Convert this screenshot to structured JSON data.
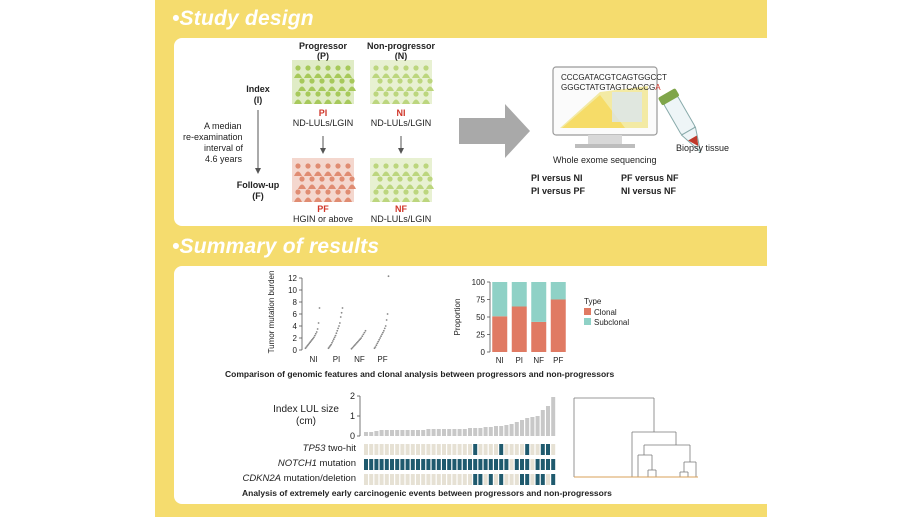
{
  "study_design": {
    "title": "•Study design",
    "col_progressor": "Progressor",
    "col_progressor_abbr": "(P)",
    "col_nonprogressor": "Non-progressor",
    "col_nonprogressor_abbr": "(N)",
    "index_label": "Index",
    "index_abbr": "(I)",
    "followup_label": "Follow-up",
    "followup_abbr": "(F)",
    "interval_text": [
      "A median",
      "re-examination",
      "interval of",
      "4.6 years"
    ],
    "pi_code": "PI",
    "pi_desc": "ND-LULs/LGIN",
    "ni_code": "NI",
    "ni_desc": "ND-LULs/LGIN",
    "pf_code": "PF",
    "pf_desc": "HGIN or above",
    "nf_code": "NF",
    "nf_desc": "ND-LULs/LGIN",
    "seq_line1": "CCCGATACGTCAGTGGCCT",
    "seq_line2": "GGGCTATGTAGTCACCG",
    "seq_line2_end": "A",
    "wes_label": "Whole exome sequencing",
    "biopsy_label": "Biopsy tissue",
    "comparisons": [
      "PI versus NI",
      "PF versus NF",
      "PI versus PF",
      "NI versus NF"
    ]
  },
  "summary": {
    "title": "•Summary of results",
    "caption1": "Comparison of genomic features and clonal analysis between progressors and non-progressors",
    "caption2": "Analysis of extremely early carcinogenic events between progressors and non-progressors",
    "lul_label_1": "Index LUL size",
    "lul_label_2": "(cm)",
    "row_tp53_gene": "TP53",
    "row_tp53_rest": " two-hit",
    "row_notch1_gene": "NOTCH1",
    "row_notch1_rest": " mutation",
    "row_cdkn2a_gene": "CDKN2A",
    "row_cdkn2a_rest": " mutation/deletion"
  },
  "colors": {
    "panel": "#f5dc6e",
    "clonal": "#e07a63",
    "subclonal": "#8fd1c6",
    "teal": "#1f5a6e",
    "grey_cell": "#e6e1d4",
    "progressor_green": "#a7c95b",
    "pf_red": "#e08c72"
  },
  "chart_data": [
    {
      "type": "scatter",
      "ylabel": "Tumor mutation burden",
      "categories": [
        "NI",
        "PI",
        "NF",
        "PF"
      ],
      "yticks": [
        0,
        2,
        4,
        6,
        8,
        10,
        12
      ],
      "ylim": [
        0,
        12
      ],
      "series": [
        {
          "category": "NI",
          "values": [
            0.3,
            0.5,
            0.7,
            0.9,
            1.1,
            1.3,
            1.5,
            1.7,
            1.9,
            2.1,
            2.4,
            2.7,
            3.0,
            3.5,
            4.5,
            7.0
          ]
        },
        {
          "category": "PI",
          "values": [
            0.3,
            0.5,
            0.7,
            0.9,
            1.2,
            1.5,
            1.8,
            2.1,
            2.4,
            2.8,
            3.2,
            3.6,
            4.0,
            4.5,
            5.5,
            6.2,
            7.0
          ]
        },
        {
          "category": "NF",
          "values": [
            0.2,
            0.4,
            0.6,
            0.8,
            1.0,
            1.2,
            1.4,
            1.6,
            1.8,
            2.0,
            2.3,
            2.6,
            2.9,
            3.2
          ]
        },
        {
          "category": "PF",
          "values": [
            0.3,
            0.5,
            0.8,
            1.1,
            1.4,
            1.7,
            2.0,
            2.3,
            2.6,
            2.9,
            3.2,
            3.6,
            4.0,
            5.0,
            6.0,
            12.3
          ]
        }
      ]
    },
    {
      "type": "bar",
      "stacked": true,
      "ylabel": "Proportion",
      "categories": [
        "NI",
        "PI",
        "NF",
        "PF"
      ],
      "yticks": [
        0,
        25,
        50,
        75,
        100
      ],
      "ylim": [
        0,
        100
      ],
      "legend_title": "Type",
      "series": [
        {
          "name": "Clonal",
          "values": [
            51,
            65,
            43,
            75
          ]
        },
        {
          "name": "Subclonal",
          "values": [
            49,
            35,
            57,
            25
          ]
        }
      ]
    },
    {
      "type": "bar",
      "ylabel": "Index LUL size (cm)",
      "yticks": [
        0,
        1,
        2
      ],
      "ylim": [
        0,
        2
      ],
      "values": [
        0.2,
        0.2,
        0.25,
        0.3,
        0.3,
        0.3,
        0.3,
        0.3,
        0.3,
        0.3,
        0.3,
        0.3,
        0.35,
        0.35,
        0.35,
        0.35,
        0.35,
        0.35,
        0.35,
        0.35,
        0.4,
        0.4,
        0.4,
        0.45,
        0.45,
        0.5,
        0.5,
        0.55,
        0.6,
        0.7,
        0.8,
        0.9,
        0.95,
        1.0,
        1.3,
        1.5,
        1.95
      ]
    },
    {
      "type": "heatmap",
      "rows": [
        "TP53 two-hit",
        "NOTCH1 mutation",
        "CDKN2A mutation/deletion"
      ],
      "positive_columns": [
        [
          21,
          26,
          31,
          34,
          35
        ],
        [
          0,
          1,
          2,
          3,
          4,
          5,
          6,
          7,
          8,
          9,
          10,
          11,
          12,
          13,
          14,
          15,
          16,
          17,
          18,
          19,
          20,
          21,
          22,
          23,
          24,
          25,
          26,
          27,
          29,
          30,
          31,
          33,
          34,
          35,
          36
        ],
        [
          21,
          22,
          24,
          26,
          30,
          31,
          33,
          34,
          36
        ]
      ],
      "n_columns": 37
    }
  ]
}
